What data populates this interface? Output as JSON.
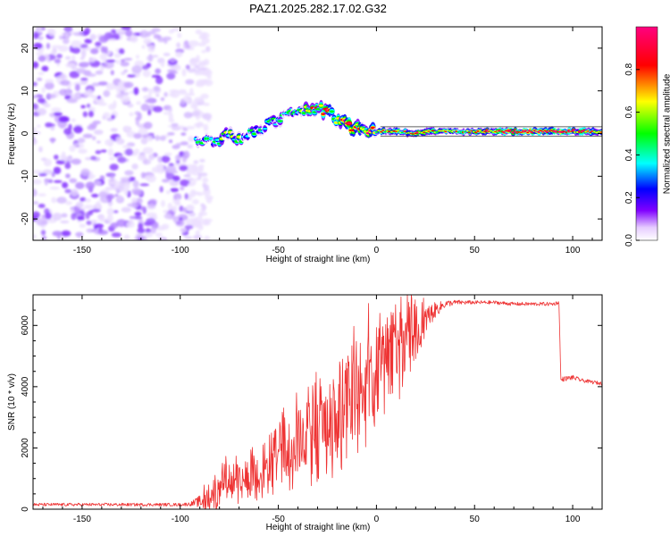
{
  "title": "PAZ1.2025.282.17.02.G32",
  "chart_data": [
    {
      "type": "heatmap",
      "xlabel": "Height of straight line (km)",
      "ylabel": "Frequency (Hz)",
      "xlim": [
        -175,
        115
      ],
      "ylim": [
        -25,
        25
      ],
      "xticks": [
        -150,
        -100,
        -50,
        0,
        50,
        100
      ],
      "yticks": [
        -20,
        -10,
        0,
        10,
        20
      ],
      "colorbar": {
        "label": "Normalized spectral amplitude",
        "range": [
          0,
          1
        ],
        "ticks": [
          0.0,
          0.2,
          0.4,
          0.6,
          0.8
        ],
        "colormap": [
          "#ffffff",
          "#e6ccff",
          "#8000ff",
          "#0000ff",
          "#00ffff",
          "#00ff00",
          "#ffff00",
          "#ff0000",
          "#ff007f"
        ]
      },
      "noise_region": {
        "x": [
          -175,
          -95
        ],
        "freq": [
          -25,
          25
        ],
        "amplitude": 0.1
      },
      "signal_track": {
        "x": [
          -92,
          -85,
          -80,
          -75,
          -70,
          -65,
          -60,
          -55,
          -50,
          -45,
          -40,
          -35,
          -30,
          -25,
          -20,
          -15,
          -10,
          -5,
          0,
          10,
          20,
          30,
          50,
          70,
          90,
          115
        ],
        "freq": [
          -1,
          -1.5,
          -2,
          0,
          -1,
          0,
          1,
          2,
          3,
          4.5,
          5.5,
          5.5,
          5.5,
          5.5,
          3,
          2,
          1,
          1,
          0.5,
          0.5,
          0,
          0.5,
          0.5,
          0.5,
          0.5,
          0.5
        ],
        "amplitude": [
          0.3,
          0.35,
          0.4,
          0.45,
          0.4,
          0.35,
          0.35,
          0.4,
          0.35,
          0.4,
          0.45,
          0.5,
          0.55,
          0.65,
          0.55,
          0.75,
          0.6,
          0.7,
          0.6,
          0.55,
          0.65,
          0.55,
          0.6,
          0.75,
          0.8,
          0.6
        ]
      }
    },
    {
      "type": "line",
      "xlabel": "Height of straight line (km)",
      "ylabel": "SNR (10 * v/v)",
      "xlim": [
        -175,
        115
      ],
      "ylim": [
        0,
        7000
      ],
      "xticks": [
        -150,
        -100,
        -50,
        0,
        50,
        100
      ],
      "yticks": [
        0,
        2000,
        4000,
        6000
      ],
      "color": "#ee3333",
      "series": [
        {
          "name": "SNR",
          "x": [
            -175,
            -150,
            -120,
            -100,
            -95,
            -90,
            -85,
            -80,
            -75,
            -70,
            -65,
            -60,
            -55,
            -50,
            -45,
            -40,
            -35,
            -30,
            -25,
            -20,
            -15,
            -10,
            -5,
            0,
            5,
            10,
            15,
            20,
            25,
            30,
            35,
            40,
            50,
            60,
            70,
            80,
            90,
            93,
            94,
            95,
            100,
            105,
            110,
            115
          ],
          "mean": [
            150,
            150,
            150,
            150,
            170,
            250,
            450,
            700,
            1000,
            1000,
            1100,
            1200,
            1400,
            1700,
            1900,
            2200,
            2400,
            2600,
            2700,
            3000,
            3500,
            3800,
            4200,
            4500,
            4800,
            5000,
            5400,
            5800,
            6200,
            6500,
            6700,
            6750,
            6750,
            6750,
            6700,
            6700,
            6700,
            6750,
            4200,
            4250,
            4300,
            4200,
            4150,
            4100
          ],
          "amplitude": [
            50,
            50,
            50,
            50,
            60,
            200,
            500,
            700,
            700,
            700,
            800,
            900,
            1000,
            1100,
            1200,
            1300,
            1400,
            1500,
            1600,
            1700,
            1800,
            1800,
            1800,
            1700,
            1600,
            1400,
            1200,
            900,
            500,
            250,
            120,
            80,
            60,
            60,
            60,
            60,
            60,
            60,
            80,
            80,
            80,
            60,
            60,
            60
          ]
        }
      ]
    }
  ]
}
